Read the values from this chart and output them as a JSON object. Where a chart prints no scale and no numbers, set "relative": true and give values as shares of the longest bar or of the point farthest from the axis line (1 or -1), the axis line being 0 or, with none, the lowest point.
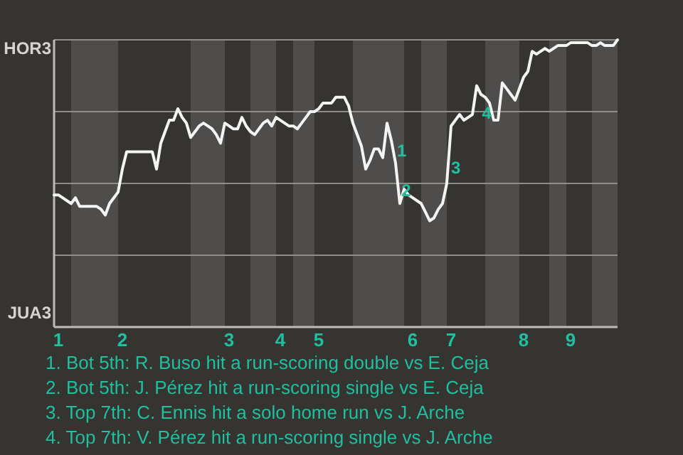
{
  "chart_data": {
    "type": "line",
    "relative": true,
    "categories": [
      null,
      "1",
      null,
      null,
      null,
      null,
      null,
      null,
      null,
      null,
      null,
      null,
      null,
      null,
      null,
      null,
      "2",
      null,
      null,
      null,
      null,
      null,
      null,
      null,
      null,
      null,
      null,
      null,
      null,
      null,
      null,
      null,
      null,
      null,
      null,
      null,
      null,
      null,
      null,
      null,
      null,
      "3",
      null,
      null,
      null,
      null,
      null,
      null,
      null,
      null,
      null,
      null,
      null,
      "4",
      null,
      null,
      null,
      null,
      null,
      null,
      null,
      null,
      "5",
      null,
      null,
      null,
      null,
      null,
      null,
      null,
      null,
      null,
      null,
      null,
      null,
      null,
      null,
      null,
      null,
      null,
      null,
      null,
      null,
      null,
      "6",
      null,
      null,
      null,
      null,
      null,
      null,
      null,
      null,
      "7",
      null,
      null,
      null,
      null,
      null,
      null,
      null,
      null,
      null,
      null,
      null,
      null,
      null,
      null,
      null,
      null,
      "8",
      null,
      null,
      null,
      null,
      null,
      null,
      null,
      null,
      null,
      null,
      "9",
      null,
      null,
      null,
      null,
      null,
      null,
      null,
      null,
      null,
      null,
      null
    ],
    "series": [
      {
        "color": "#f4f4f4",
        "values": [
          0.46,
          0.46,
          0.45,
          0.44,
          0.43,
          0.45,
          0.42,
          0.42,
          0.42,
          0.42,
          0.42,
          0.41,
          0.39,
          0.43,
          0.45,
          0.47,
          0.55,
          0.61,
          0.61,
          0.61,
          0.61,
          0.61,
          0.61,
          0.61,
          0.55,
          0.64,
          0.68,
          0.72,
          0.72,
          0.76,
          0.73,
          0.71,
          0.66,
          0.68,
          0.7,
          0.71,
          0.7,
          0.69,
          0.67,
          0.64,
          0.71,
          0.7,
          0.69,
          0.69,
          0.73,
          0.7,
          0.68,
          0.67,
          0.69,
          0.71,
          0.72,
          0.7,
          0.73,
          0.72,
          0.71,
          0.7,
          0.7,
          0.69,
          0.71,
          0.73,
          0.75,
          0.75,
          0.76,
          0.78,
          0.78,
          0.78,
          0.8,
          0.8,
          0.8,
          0.77,
          0.71,
          0.67,
          0.63,
          0.55,
          0.58,
          0.62,
          0.62,
          0.59,
          0.71,
          0.65,
          0.57,
          0.43,
          0.48,
          0.46,
          0.45,
          0.44,
          0.43,
          0.4,
          0.37,
          0.38,
          0.41,
          0.43,
          0.5,
          0.7,
          0.72,
          0.74,
          0.72,
          0.73,
          0.74,
          0.84,
          0.81,
          0.8,
          0.78,
          0.72,
          0.72,
          0.85,
          0.83,
          0.81,
          0.79,
          0.83,
          0.87,
          0.89,
          0.96,
          0.95,
          0.96,
          0.97,
          0.96,
          0.97,
          0.98,
          0.98,
          0.98,
          0.99,
          0.99,
          0.99,
          0.99,
          0.99,
          0.98,
          0.98,
          0.99,
          0.98,
          0.98,
          0.98,
          1.0
        ]
      }
    ],
    "grid": "y",
    "annotations": [
      "HOR3",
      "JUA3",
      "1",
      "2",
      "3",
      "4",
      "1. Bot 5th: R. Buso hit a run-scoring double vs E. Ceja",
      "2. Bot 5th: J. Pérez hit a run-scoring single vs E. Ceja",
      "3. Top 7th: C. Ennis hit a solo home run vs J. Arche",
      "4. Top 7th: V. Pérez hit a run-scoring single vs J. Arche"
    ]
  }
}
